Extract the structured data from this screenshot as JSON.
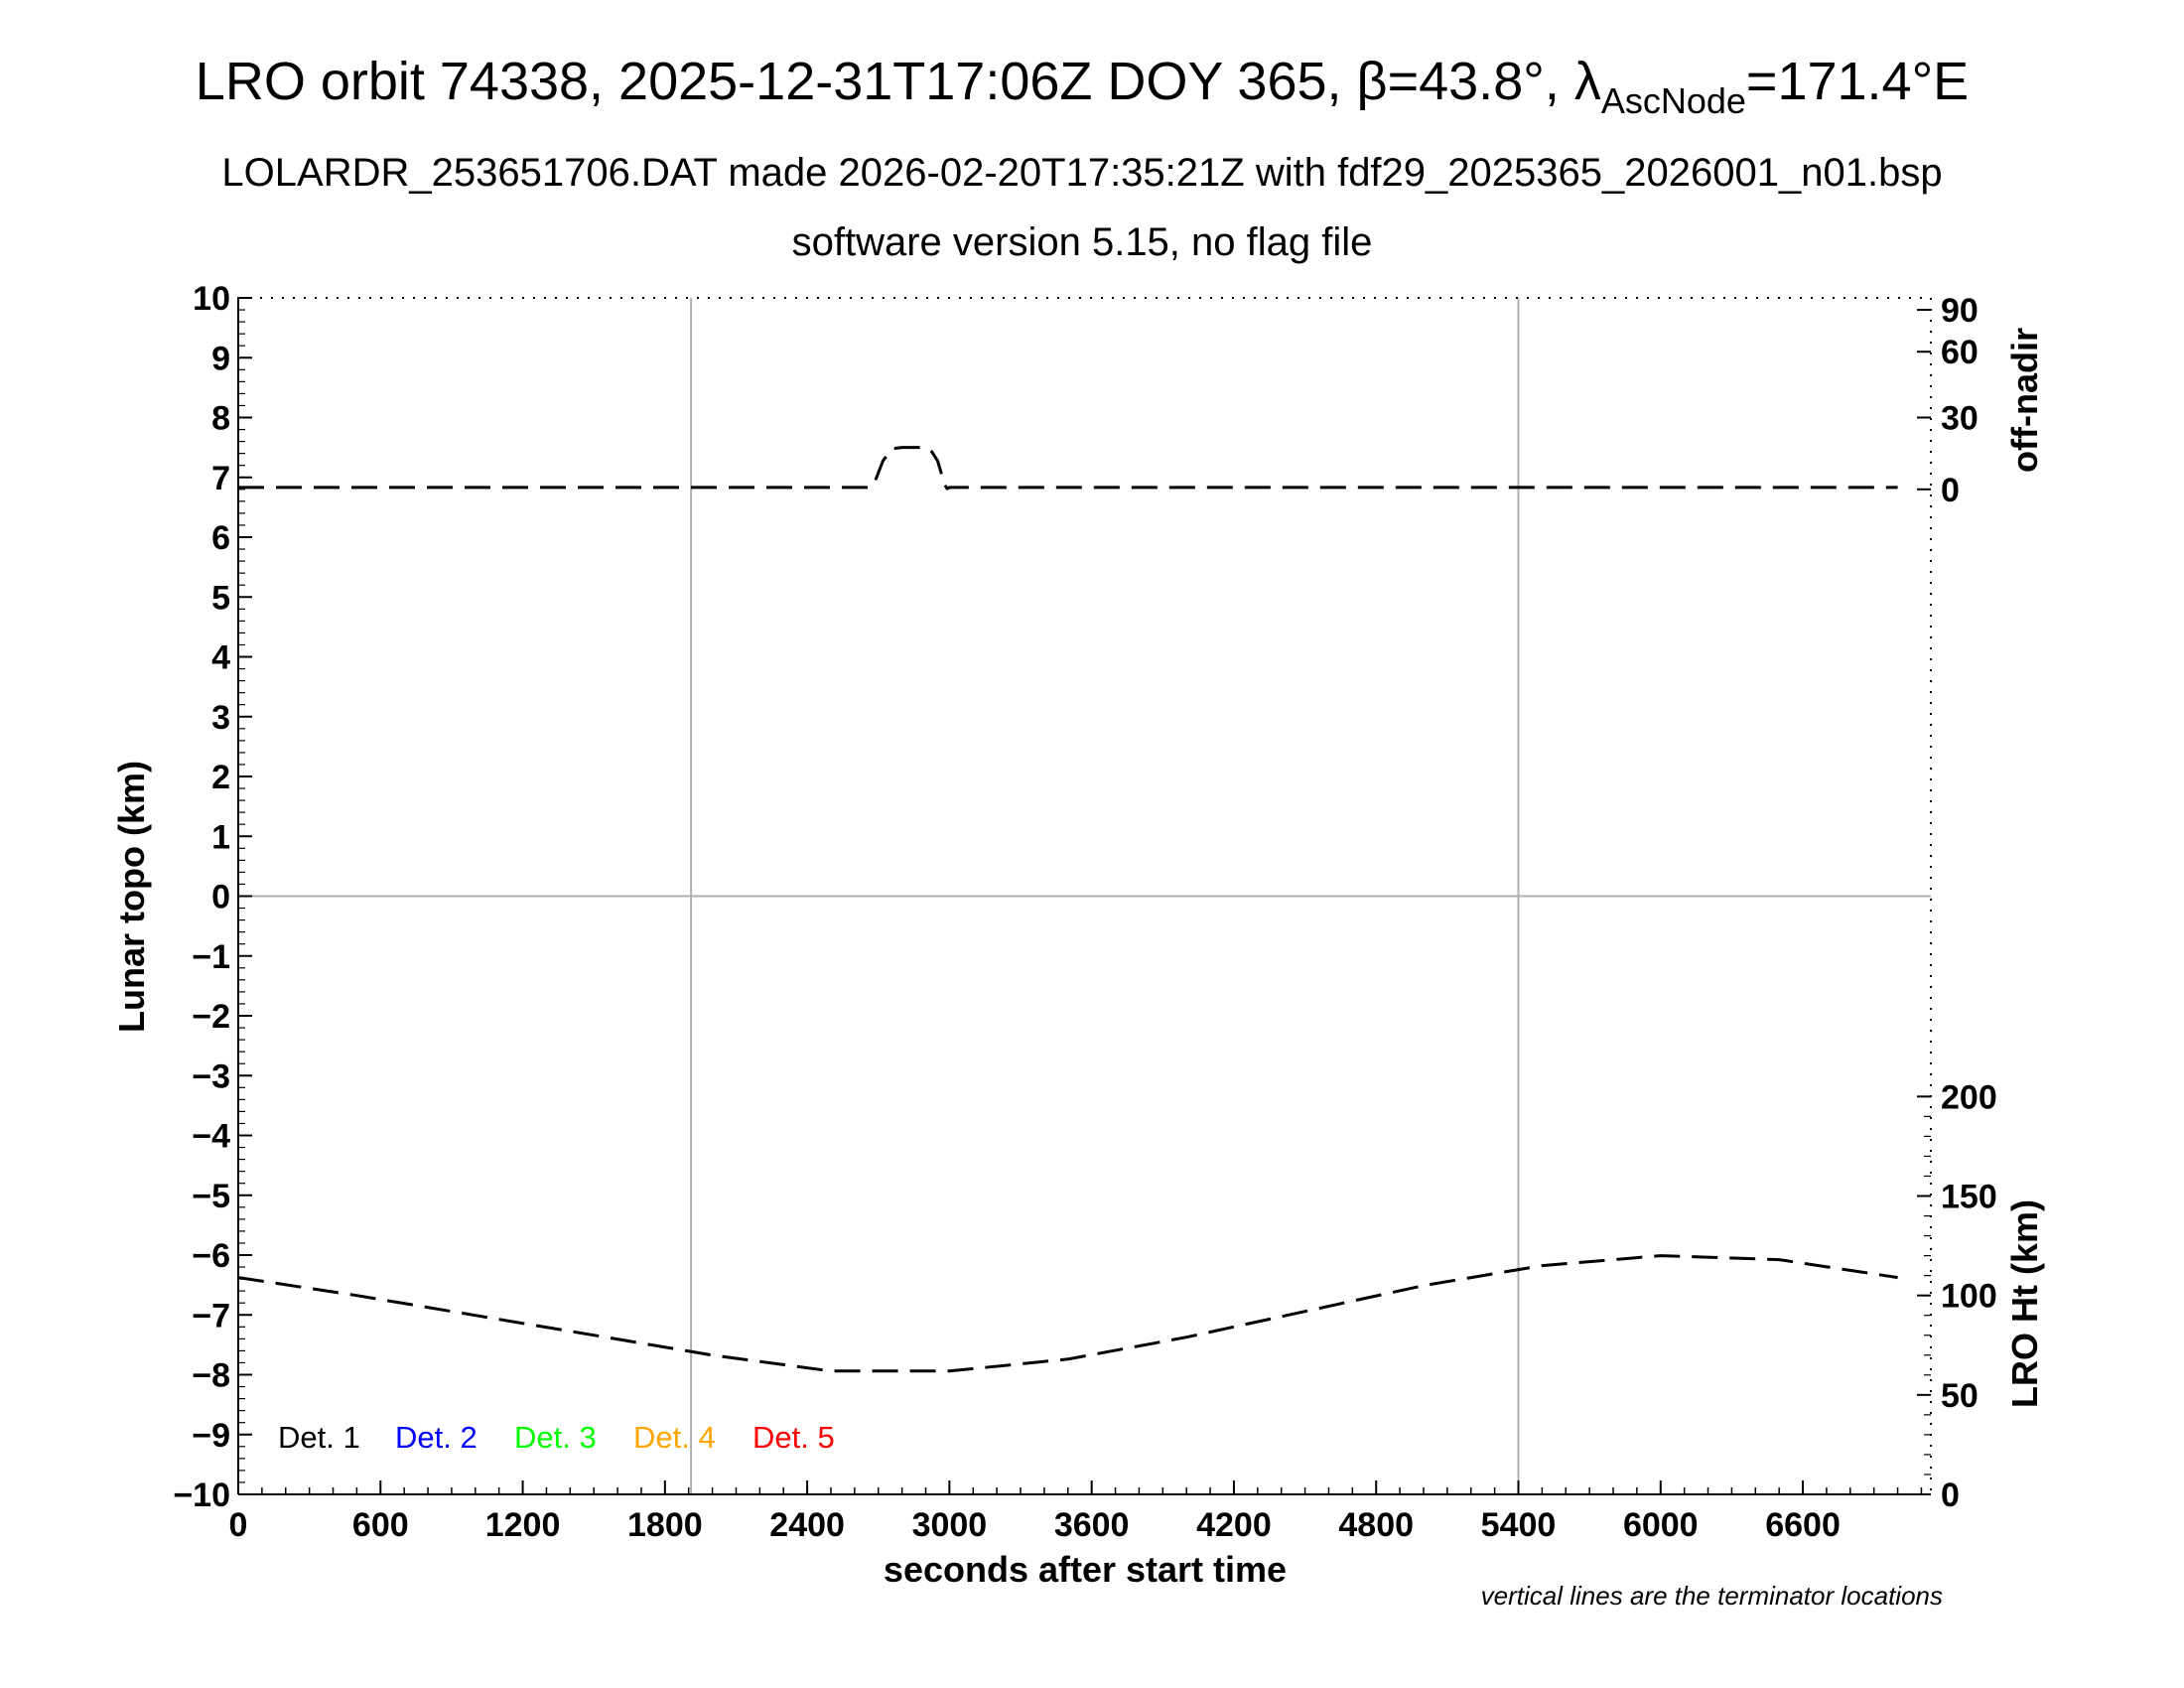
{
  "header": {
    "title_main": "LRO orbit 74338, 2025-12-31T17:06Z DOY 365, β=43.8°, λ",
    "title_sub": "AscNode",
    "title_tail": "=171.4°E",
    "subtitle1": "LOLARDR_253651706.DAT made 2026-02-20T17:35:21Z with fdf29_2025365_2026001_n01.bsp",
    "subtitle2": "software version 5.15, no flag file"
  },
  "axes": {
    "xlabel": "seconds after start time",
    "ylabel_left": "Lunar topo (km)",
    "ylabel_right_top": "off-nadir",
    "ylabel_right_bottom": "LRO Ht (km)",
    "footnote": "vertical lines are the terminator locations"
  },
  "legend": [
    {
      "label": "Det. 1",
      "color": "#000000"
    },
    {
      "label": "Det. 2",
      "color": "#0000ff"
    },
    {
      "label": "Det. 3",
      "color": "#00ff00"
    },
    {
      "label": "Det. 4",
      "color": "#ffa500"
    },
    {
      "label": "Det. 5",
      "color": "#ff0000"
    }
  ],
  "chart_data": {
    "type": "line",
    "xlim": [
      0,
      7140
    ],
    "ylim_left": [
      -10,
      10
    ],
    "x_ticks": [
      "0",
      "600",
      "1200",
      "1800",
      "2400",
      "3000",
      "3600",
      "4200",
      "4800",
      "5400",
      "6000",
      "6600"
    ],
    "x_tick_values": [
      0,
      600,
      1200,
      1800,
      2400,
      3000,
      3600,
      4200,
      4800,
      5400,
      6000,
      6600
    ],
    "y_ticks_left": [
      "10",
      "9",
      "8",
      "7",
      "6",
      "5",
      "4",
      "3",
      "2",
      "1",
      "0",
      "−1",
      "−2",
      "−3",
      "−4",
      "−5",
      "−6",
      "−7",
      "−8",
      "−9",
      "−10"
    ],
    "y_tick_values_left": [
      10,
      9,
      8,
      7,
      6,
      5,
      4,
      3,
      2,
      1,
      0,
      -1,
      -2,
      -3,
      -4,
      -5,
      -6,
      -7,
      -8,
      -9,
      -10
    ],
    "off_nadir_axis": {
      "range": [
        0,
        90
      ],
      "ticks": [
        "90",
        "60",
        "30",
        "0"
      ],
      "tick_values": [
        90,
        60,
        30,
        0
      ]
    },
    "lro_ht_axis": {
      "range": [
        0,
        200
      ],
      "ticks": [
        "200",
        "150",
        "100",
        "50",
        "0"
      ],
      "tick_values": [
        200,
        150,
        100,
        50,
        0
      ]
    },
    "terminator_lines_x": [
      1910,
      5400
    ],
    "horizontal_zero_line": true,
    "series": [
      {
        "axis": "off-nadir",
        "style": "dashed",
        "color": "#000000",
        "x": [
          0,
          1000,
          2000,
          2660,
          2680,
          2720,
          2760,
          2800,
          2880,
          2920,
          2950,
          2980,
          2990,
          3000,
          4000,
          5000,
          6000,
          7000
        ],
        "y": [
          0.8,
          0.8,
          0.8,
          0.8,
          1.8,
          12,
          17,
          17.5,
          17.5,
          16.5,
          12,
          2,
          0.3,
          0.8,
          0.8,
          0.8,
          0.8,
          0.8
        ]
      },
      {
        "axis": "lro-ht",
        "style": "dashed",
        "color": "#000000",
        "x": [
          0,
          500,
          1000,
          1500,
          2000,
          2500,
          3000,
          3500,
          4000,
          4500,
          5000,
          5500,
          6000,
          6500,
          7000
        ],
        "y": [
          109,
          100,
          90,
          80,
          70,
          62,
          62,
          68,
          79,
          92,
          105,
          115,
          120,
          118,
          109
        ]
      }
    ]
  }
}
